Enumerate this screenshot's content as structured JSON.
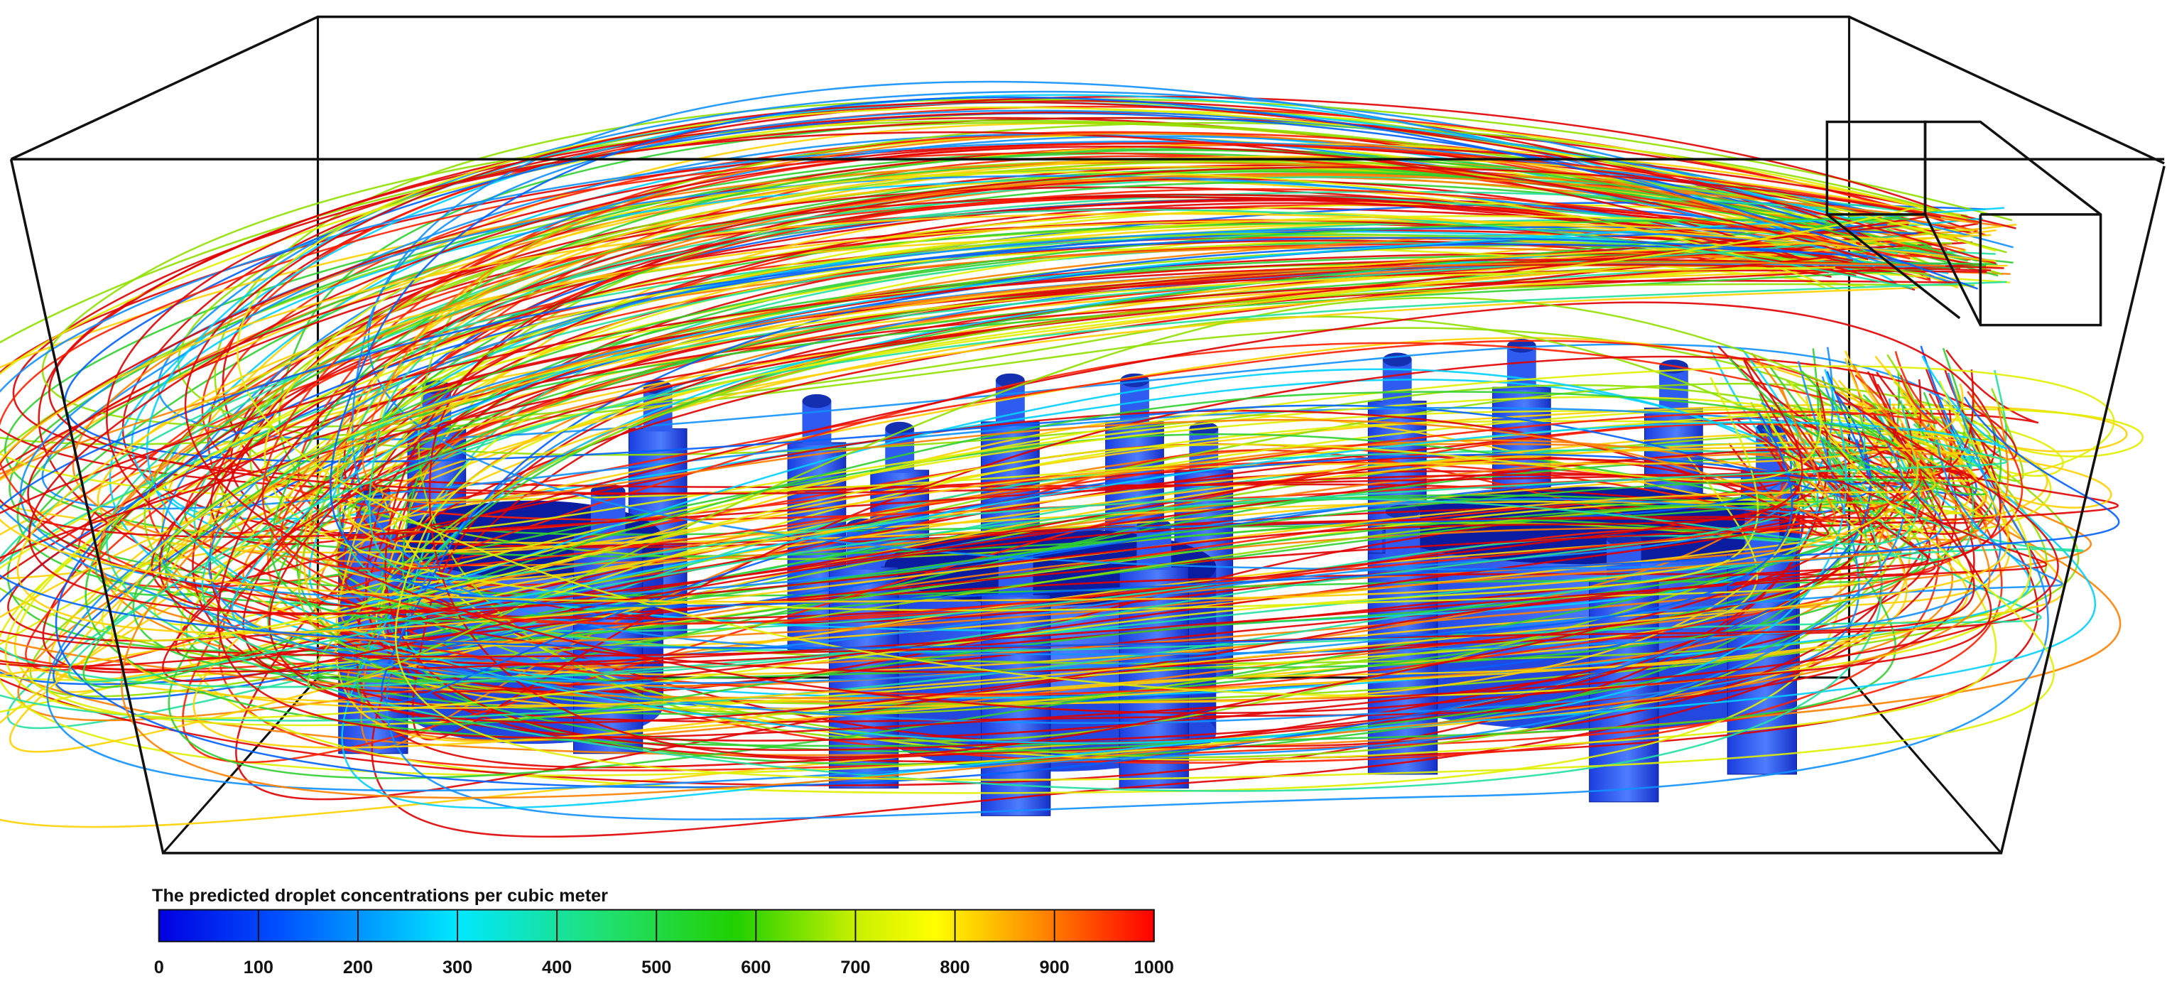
{
  "colorbar": {
    "title": "The predicted droplet concentrations per cubic meter",
    "ticks": [
      0,
      100,
      200,
      300,
      400,
      500,
      600,
      700,
      800,
      900,
      1000
    ]
  }
}
